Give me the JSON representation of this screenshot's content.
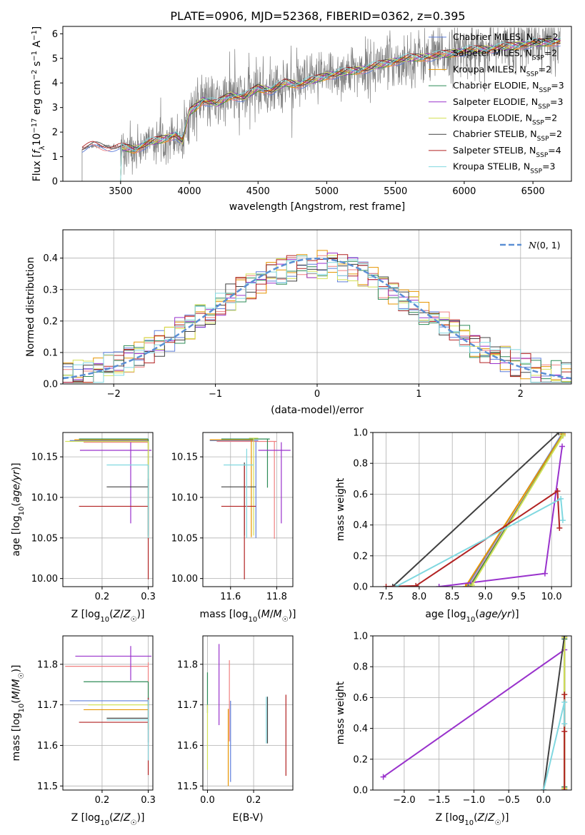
{
  "figure": {
    "title": "PLATE=0906, MJD=52368, FIBERID=0362, z=0.395"
  },
  "series_legend": [
    {
      "name": "Chabrier MILES, N_SSP=2",
      "base": "Chabrier MILES, N",
      "sub": "SSP",
      "suffix": "=2",
      "color": "#5f7fdb"
    },
    {
      "name": "Salpeter MILES, N_SSP=2",
      "base": "Salpeter MILES, N",
      "sub": "SSP",
      "suffix": "=2",
      "color": "#f08080"
    },
    {
      "name": "Kroupa MILES, N_SSP=2",
      "base": "Kroupa MILES, N",
      "sub": "SSP",
      "suffix": "=2",
      "color": "#e69500"
    },
    {
      "name": "Chabrier ELODIE, N_SSP=3",
      "base": "Chabrier ELODIE, N",
      "sub": "SSP",
      "suffix": "=3",
      "color": "#2e8b57"
    },
    {
      "name": "Salpeter ELODIE, N_SSP=3",
      "base": "Salpeter ELODIE, N",
      "sub": "SSP",
      "suffix": "=3",
      "color": "#9932cc"
    },
    {
      "name": "Kroupa ELODIE, N_SSP=2",
      "base": "Kroupa ELODIE, N",
      "sub": "SSP",
      "suffix": "=2",
      "color": "#d4e157"
    },
    {
      "name": "Chabrier STELIB, N_SSP=2",
      "base": "Chabrier STELIB, N",
      "sub": "SSP",
      "suffix": "=2",
      "color": "#404040"
    },
    {
      "name": "Salpeter STELIB, N_SSP=4",
      "base": "Salpeter STELIB, N",
      "sub": "SSP",
      "suffix": "=4",
      "color": "#b22222"
    },
    {
      "name": "Kroupa STELIB, N_SSP=3",
      "base": "Kroupa STELIB, N",
      "sub": "SSP",
      "suffix": "=3",
      "color": "#80d8e0"
    }
  ],
  "chart_data": [
    {
      "id": "spectrum",
      "type": "line",
      "xlabel": "wavelength [Angstrom, rest frame]",
      "ylabel": "Flux [f_λ 10^-17 erg cm^-2 s^-1 A^-1]",
      "ylabel_parts": {
        "a": "Flux [",
        "f": "f",
        "fsub": "λ",
        "b": "10",
        "e1": "−17",
        "c": " erg cm",
        "e2": "−2",
        "d": " s",
        "e3": "−1",
        "g": " A",
        "e4": "−1",
        "h": "]"
      },
      "xlim": [
        3080,
        6780
      ],
      "ylim": [
        0,
        6.3
      ],
      "xticks": [
        "3500",
        "4000",
        "4500",
        "5000",
        "5500",
        "6000",
        "6500"
      ],
      "yticks": [
        "0",
        "1",
        "2",
        "3",
        "4",
        "5",
        "6"
      ],
      "grid": false,
      "legend_position": "upper-right",
      "data_color": "#808080",
      "observed_start": 3220,
      "model_continuum": {
        "x": [
          3220,
          3300,
          3400,
          3500,
          3600,
          3700,
          3800,
          3900,
          3950,
          4000,
          4100,
          4200,
          4300,
          4400,
          4500,
          4600,
          4700,
          4800,
          4900,
          5000,
          5100,
          5200,
          5300,
          5400,
          5500,
          5600,
          5700,
          5800,
          5900,
          6000,
          6100,
          6200,
          6300,
          6400,
          6500,
          6600,
          6700
        ],
        "y": [
          1.35,
          1.45,
          1.42,
          1.38,
          1.3,
          1.55,
          1.7,
          1.9,
          1.6,
          2.8,
          3.3,
          3.15,
          3.5,
          3.4,
          3.8,
          3.7,
          4.0,
          3.95,
          4.1,
          4.3,
          4.4,
          4.5,
          4.6,
          4.75,
          4.9,
          5.0,
          5.05,
          5.1,
          5.2,
          5.3,
          5.35,
          5.4,
          5.45,
          5.55,
          5.6,
          5.65,
          5.7
        ]
      }
    },
    {
      "id": "residuals",
      "type": "histogram",
      "xlabel": "(data-model)/error",
      "ylabel": "Normed distribution",
      "xlim": [
        -2.5,
        2.5
      ],
      "ylim": [
        0,
        0.49
      ],
      "xticks": [
        "−2",
        "−1",
        "0",
        "1",
        "2"
      ],
      "yticks": [
        "0.0",
        "0.1",
        "0.2",
        "0.3",
        "0.4"
      ],
      "grid": true,
      "reference": {
        "label_text": "N(0,1)",
        "color": "#5b8fd4"
      },
      "legend_position": "upper-right",
      "bin_width": 0.1
    },
    {
      "id": "age_vs_Z",
      "type": "scatter",
      "xlabel": "Z [log10(Z/Z☉)]",
      "ylabel": "age [log10(age/yr)]",
      "xlim": [
        0.115,
        0.31
      ],
      "ylim": [
        9.99,
        10.18
      ],
      "xticks": [
        "0.2",
        "0.3"
      ],
      "yticks": [
        "10.00",
        "10.05",
        "10.10",
        "10.15"
      ],
      "grid": true,
      "points": [
        {
          "color": "#5f7fdb",
          "x": 0.3,
          "y": 10.17,
          "xerr": [
            0.17,
            0.0
          ],
          "yerr": [
            0.12,
            0.0
          ]
        },
        {
          "color": "#f08080",
          "x": 0.3,
          "y": 10.168,
          "xerr": [
            0.14,
            0.0
          ],
          "yerr": [
            0.12,
            0.0
          ]
        },
        {
          "color": "#e69500",
          "x": 0.3,
          "y": 10.171,
          "xerr": [
            0.16,
            0.0
          ],
          "yerr": [
            0.12,
            0.0
          ]
        },
        {
          "color": "#2e8b57",
          "x": 0.3,
          "y": 10.172,
          "xerr": [
            0.15,
            0.0
          ],
          "yerr": [
            0.12,
            0.0
          ]
        },
        {
          "color": "#9932cc",
          "x": 0.262,
          "y": 10.158,
          "xerr": [
            0.11,
            0.045
          ],
          "yerr": [
            0.09,
            0.01
          ]
        },
        {
          "color": "#d4e157",
          "x": 0.3,
          "y": 10.169,
          "xerr": [
            0.18,
            0.0
          ],
          "yerr": [
            0.12,
            0.0
          ]
        },
        {
          "color": "#404040",
          "x": 0.3,
          "y": 10.113,
          "xerr": [
            0.09,
            0.0
          ],
          "yerr": [
            0.06,
            0.01
          ]
        },
        {
          "color": "#b22222",
          "x": 0.3,
          "y": 10.089,
          "xerr": [
            0.15,
            0.0
          ],
          "yerr": [
            0.09,
            0.0
          ]
        },
        {
          "color": "#80d8e0",
          "x": 0.3,
          "y": 10.14,
          "xerr": [
            0.09,
            0.0
          ],
          "yerr": [
            0.09,
            0.0
          ]
        }
      ]
    },
    {
      "id": "age_vs_mass",
      "type": "scatter",
      "xlabel": "mass [log10(M/M☉)]",
      "ylabel": "",
      "xlim": [
        11.48,
        11.87
      ],
      "ylim": [
        9.99,
        10.18
      ],
      "xticks": [
        "11.6",
        "11.8"
      ],
      "yticks": [
        "10.00",
        "10.05",
        "10.10",
        "10.15"
      ],
      "grid": true,
      "points": [
        {
          "color": "#5f7fdb",
          "x": 11.71,
          "y": 10.17,
          "xerr": [
            0.2,
            0.01
          ],
          "yerr": [
            0.12,
            0.0
          ]
        },
        {
          "color": "#f08080",
          "x": 11.79,
          "y": 10.169,
          "xerr": [
            0.25,
            0.01
          ],
          "yerr": [
            0.12,
            0.0
          ]
        },
        {
          "color": "#e69500",
          "x": 11.69,
          "y": 10.171,
          "xerr": [
            0.18,
            0.01
          ],
          "yerr": [
            0.12,
            0.0
          ]
        },
        {
          "color": "#2e8b57",
          "x": 11.76,
          "y": 10.172,
          "xerr": [
            0.2,
            0.01
          ],
          "yerr": [
            0.06,
            0.0
          ]
        },
        {
          "color": "#9932cc",
          "x": 11.82,
          "y": 10.158,
          "xerr": [
            0.1,
            0.04
          ],
          "yerr": [
            0.09,
            0.01
          ]
        },
        {
          "color": "#d4e157",
          "x": 11.7,
          "y": 10.173,
          "xerr": [
            0.02,
            0.02
          ],
          "yerr": [
            0.12,
            0.0
          ]
        },
        {
          "color": "#404040",
          "x": 11.66,
          "y": 10.113,
          "xerr": [
            0.1,
            0.05
          ],
          "yerr": [
            0.06,
            0.03
          ]
        },
        {
          "color": "#b22222",
          "x": 11.66,
          "y": 10.089,
          "xerr": [
            0.1,
            0.05
          ],
          "yerr": [
            0.09,
            0.05
          ]
        },
        {
          "color": "#80d8e0",
          "x": 11.67,
          "y": 10.14,
          "xerr": [
            0.1,
            0.03
          ],
          "yerr": [
            0.09,
            0.02
          ]
        }
      ]
    },
    {
      "id": "weight_vs_age",
      "type": "line",
      "xlabel": "age [log10(age/yr)]",
      "ylabel": "mass weight",
      "xlim": [
        7.3,
        10.3
      ],
      "ylim": [
        0,
        1
      ],
      "xticks": [
        "7.5",
        "8.0",
        "8.5",
        "9.0",
        "9.5",
        "10.0"
      ],
      "yticks": [
        "0.0",
        "0.2",
        "0.4",
        "0.6",
        "0.8",
        "1.0"
      ],
      "grid": true,
      "series": [
        {
          "color": "#5f7fdb",
          "x": [
            8.72,
            10.17
          ],
          "y": [
            0.0,
            1.0
          ]
        },
        {
          "color": "#f08080",
          "x": [
            8.75,
            10.17
          ],
          "y": [
            0.0,
            0.98
          ]
        },
        {
          "color": "#e69500",
          "x": [
            8.7,
            10.17
          ],
          "y": [
            0.0,
            0.99
          ]
        },
        {
          "color": "#2e8b57",
          "x": [
            8.78,
            10.17
          ],
          "y": [
            0.01,
            0.98
          ]
        },
        {
          "color": "#9932cc",
          "x": [
            8.3,
            9.9,
            10.16
          ],
          "y": [
            0.0,
            0.085,
            0.91
          ]
        },
        {
          "color": "#d4e157",
          "x": [
            8.8,
            10.17
          ],
          "y": [
            0.01,
            0.98
          ]
        },
        {
          "color": "#404040",
          "x": [
            7.6,
            10.11
          ],
          "y": [
            0.0,
            1.0
          ]
        },
        {
          "color": "#b22222",
          "x": [
            7.5,
            7.95,
            10.09,
            10.12
          ],
          "y": [
            0.0,
            0.005,
            0.62,
            0.38
          ]
        },
        {
          "color": "#80d8e0",
          "x": [
            7.65,
            10.14,
            10.17
          ],
          "y": [
            0.0,
            0.57,
            0.43
          ]
        }
      ]
    },
    {
      "id": "mass_vs_Z",
      "type": "scatter",
      "xlabel": "Z [log10(Z/Z☉)]",
      "ylabel": "mass [log10(M/M☉)]",
      "xlim": [
        0.115,
        0.31
      ],
      "ylim": [
        11.49,
        11.87
      ],
      "xticks": [
        "0.2",
        "0.3"
      ],
      "yticks": [
        "11.5",
        "11.6",
        "11.7",
        "11.8"
      ],
      "grid": true,
      "points": [
        {
          "color": "#5f7fdb",
          "x": 0.3,
          "y": 11.71,
          "xerr": [
            0.17,
            0.0
          ],
          "yerr": [
            0.05,
            0.01
          ]
        },
        {
          "color": "#f08080",
          "x": 0.3,
          "y": 11.795,
          "xerr": [
            0.18,
            0.0
          ],
          "yerr": [
            0.1,
            0.01
          ]
        },
        {
          "color": "#e69500",
          "x": 0.3,
          "y": 11.688,
          "xerr": [
            0.14,
            0.0
          ],
          "yerr": [
            0.05,
            0.0
          ]
        },
        {
          "color": "#2e8b57",
          "x": 0.3,
          "y": 11.757,
          "xerr": [
            0.14,
            0.0
          ],
          "yerr": [
            0.06,
            0.0
          ]
        },
        {
          "color": "#9932cc",
          "x": 0.262,
          "y": 11.82,
          "xerr": [
            0.12,
            0.045
          ],
          "yerr": [
            0.06,
            0.025
          ]
        },
        {
          "color": "#d4e157",
          "x": 0.3,
          "y": 11.7,
          "xerr": [
            0.13,
            0.0
          ],
          "yerr": [
            0.06,
            0.0
          ]
        },
        {
          "color": "#404040",
          "x": 0.3,
          "y": 11.667,
          "xerr": [
            0.09,
            0.0
          ],
          "yerr": [
            0.06,
            0.05
          ]
        },
        {
          "color": "#b22222",
          "x": 0.3,
          "y": 11.657,
          "xerr": [
            0.15,
            0.0
          ],
          "yerr": [
            0.13,
            0.06
          ]
        },
        {
          "color": "#80d8e0",
          "x": 0.3,
          "y": 11.663,
          "xerr": [
            0.09,
            0.0
          ],
          "yerr": [
            0.1,
            0.05
          ]
        }
      ]
    },
    {
      "id": "mass_vs_EBV",
      "type": "scatter",
      "xlabel": "E(B-V)",
      "ylabel": "",
      "xlim": [
        -0.02,
        0.37
      ],
      "ylim": [
        11.49,
        11.87
      ],
      "xticks": [
        "0.0",
        "0.2"
      ],
      "yticks": [
        "11.5",
        "11.6",
        "11.7",
        "11.8"
      ],
      "grid": true,
      "points": [
        {
          "color": "#5f7fdb",
          "x": 0.1,
          "y": 11.61,
          "xerr": [
            0.0,
            0.0
          ],
          "yerr": [
            0.1,
            0.1
          ]
        },
        {
          "color": "#f08080",
          "x": 0.095,
          "y": 11.71,
          "xerr": [
            0.0,
            0.0
          ],
          "yerr": [
            0.1,
            0.1
          ]
        },
        {
          "color": "#e69500",
          "x": 0.09,
          "y": 11.6,
          "xerr": [
            0.0,
            0.0
          ],
          "yerr": [
            0.1,
            0.09
          ]
        },
        {
          "color": "#2e8b57",
          "x": 0.0,
          "y": 11.73,
          "xerr": [
            0.0,
            0.0
          ],
          "yerr": [
            0.05,
            0.05
          ]
        },
        {
          "color": "#9932cc",
          "x": 0.05,
          "y": 11.75,
          "xerr": [
            0.0,
            0.0
          ],
          "yerr": [
            0.1,
            0.1
          ]
        },
        {
          "color": "#d4e157",
          "x": 0.0,
          "y": 11.65,
          "xerr": [
            0.0,
            0.0
          ],
          "yerr": [
            0.11,
            0.05
          ]
        },
        {
          "color": "#404040",
          "x": 0.26,
          "y": 11.665,
          "xerr": [
            0.0,
            0.0
          ],
          "yerr": [
            0.06,
            0.055
          ]
        },
        {
          "color": "#b22222",
          "x": 0.34,
          "y": 11.625,
          "xerr": [
            0.0,
            0.0
          ],
          "yerr": [
            0.1,
            0.1
          ]
        },
        {
          "color": "#80d8e0",
          "x": 0.255,
          "y": 11.665,
          "xerr": [
            0.0,
            0.0
          ],
          "yerr": [
            0.06,
            0.055
          ]
        }
      ]
    },
    {
      "id": "weight_vs_Z",
      "type": "line",
      "xlabel": "Z [log10(Z/Z☉)]",
      "ylabel": "mass weight",
      "xlim": [
        -2.45,
        0.4
      ],
      "ylim": [
        0,
        1
      ],
      "xticks": [
        "−2.0",
        "−1.5",
        "−1.0",
        "−0.5",
        "0.0"
      ],
      "yticks": [
        "0.0",
        "0.2",
        "0.4",
        "0.6",
        "0.8",
        "1.0"
      ],
      "grid": true,
      "series": [
        {
          "color": "#5f7fdb",
          "x": [
            0.3,
            0.3
          ],
          "y": [
            0.0,
            1.0
          ]
        },
        {
          "color": "#f08080",
          "x": [
            0.3,
            0.3
          ],
          "y": [
            0.02,
            0.98
          ]
        },
        {
          "color": "#e69500",
          "x": [
            0.3,
            0.3
          ],
          "y": [
            0.01,
            0.99
          ]
        },
        {
          "color": "#2e8b57",
          "x": [
            0.3,
            0.3
          ],
          "y": [
            0.02,
            0.98
          ]
        },
        {
          "color": "#9932cc",
          "x": [
            -2.3,
            0.3
          ],
          "y": [
            0.085,
            0.91
          ]
        },
        {
          "color": "#d4e157",
          "x": [
            0.3,
            0.3
          ],
          "y": [
            0.01,
            0.99
          ]
        },
        {
          "color": "#404040",
          "x": [
            0.0,
            0.3
          ],
          "y": [
            0.0,
            1.0
          ]
        },
        {
          "color": "#b22222",
          "x": [
            0.3,
            0.3,
            0.3
          ],
          "y": [
            0.0,
            0.62,
            0.38
          ]
        },
        {
          "color": "#80d8e0",
          "x": [
            0.0,
            0.3,
            0.3
          ],
          "y": [
            0.0,
            0.57,
            0.43
          ]
        }
      ]
    }
  ]
}
